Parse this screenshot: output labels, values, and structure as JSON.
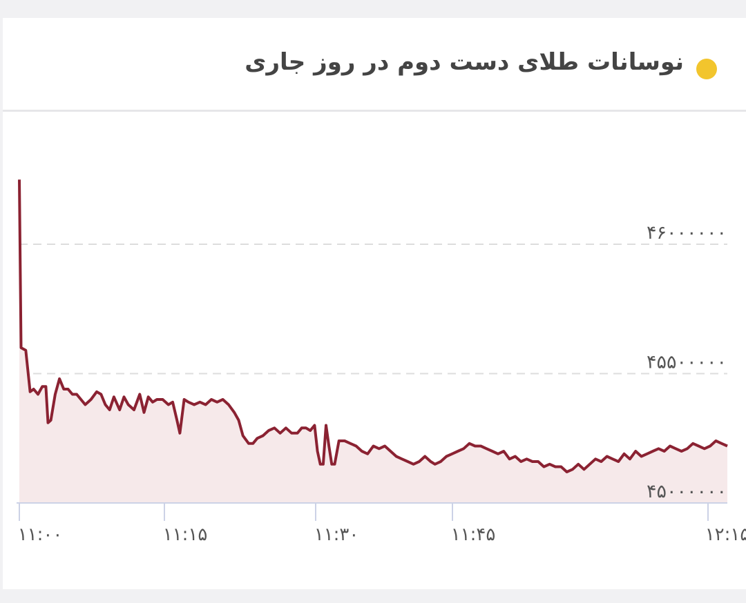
{
  "header": {
    "title": "نوسانات طلای دست دوم در روز جاری",
    "dot_color": "#f2c52d"
  },
  "chart_data": {
    "type": "area",
    "title": "نوسانات طلای دست دوم در روز جاری",
    "line_color": "#8b2232",
    "fill_color": "#f6e9ea",
    "grid": true,
    "y_ticks": [
      {
        "value": 45000000,
        "label": "۴۵۰۰۰۰۰۰"
      },
      {
        "value": 45500000,
        "label": "۴۵۵۰۰۰۰۰"
      },
      {
        "value": 46000000,
        "label": "۴۶۰۰۰۰۰۰"
      }
    ],
    "x_ticks": [
      {
        "value": 660,
        "label": "۱۱:۰۰"
      },
      {
        "value": 675,
        "label": "۱۱:۱۵"
      },
      {
        "value": 690,
        "label": "۱۱:۳۰"
      },
      {
        "value": 705,
        "label": "۱۱:۴۵"
      },
      {
        "value": 720,
        "label": "۱۲:۱۵"
      }
    ],
    "points": [
      [
        0,
        46250000
      ],
      [
        0.12,
        45600000
      ],
      [
        0.45,
        45590000
      ],
      [
        0.75,
        45430000
      ],
      [
        1.0,
        45440000
      ],
      [
        1.3,
        45420000
      ],
      [
        1.6,
        45450000
      ],
      [
        1.85,
        45450000
      ],
      [
        2.0,
        45310000
      ],
      [
        2.2,
        45320000
      ],
      [
        2.5,
        45420000
      ],
      [
        2.8,
        45480000
      ],
      [
        3.1,
        45440000
      ],
      [
        3.4,
        45440000
      ],
      [
        3.7,
        45420000
      ],
      [
        4.0,
        45420000
      ],
      [
        4.3,
        45400000
      ],
      [
        4.6,
        45380000
      ],
      [
        5.0,
        45400000
      ],
      [
        5.4,
        45430000
      ],
      [
        5.7,
        45420000
      ],
      [
        6.0,
        45380000
      ],
      [
        6.3,
        45360000
      ],
      [
        6.6,
        45410000
      ],
      [
        7.0,
        45360000
      ],
      [
        7.3,
        45410000
      ],
      [
        7.6,
        45380000
      ],
      [
        8.0,
        45360000
      ],
      [
        8.4,
        45420000
      ],
      [
        8.7,
        45350000
      ],
      [
        9.0,
        45410000
      ],
      [
        9.3,
        45390000
      ],
      [
        9.6,
        45400000
      ],
      [
        10.0,
        45400000
      ],
      [
        10.4,
        45380000
      ],
      [
        10.7,
        45390000
      ],
      [
        11.0,
        45320000
      ],
      [
        11.2,
        45270000
      ],
      [
        11.5,
        45400000
      ],
      [
        11.8,
        45390000
      ],
      [
        12.2,
        45380000
      ],
      [
        12.6,
        45390000
      ],
      [
        13.0,
        45380000
      ],
      [
        13.4,
        45400000
      ],
      [
        13.8,
        45390000
      ],
      [
        14.2,
        45400000
      ],
      [
        14.6,
        45380000
      ],
      [
        15.0,
        45350000
      ],
      [
        15.3,
        45320000
      ],
      [
        15.6,
        45260000
      ],
      [
        16.0,
        45230000
      ],
      [
        16.3,
        45230000
      ],
      [
        16.6,
        45250000
      ],
      [
        17.0,
        45260000
      ],
      [
        17.4,
        45280000
      ],
      [
        17.8,
        45290000
      ],
      [
        18.2,
        45270000
      ],
      [
        18.6,
        45290000
      ],
      [
        19.0,
        45270000
      ],
      [
        19.4,
        45270000
      ],
      [
        19.7,
        45290000
      ],
      [
        20.0,
        45290000
      ],
      [
        20.3,
        45280000
      ],
      [
        20.6,
        45300000
      ],
      [
        20.8,
        45200000
      ],
      [
        21.0,
        45150000
      ],
      [
        21.2,
        45150000
      ],
      [
        21.4,
        45300000
      ],
      [
        21.6,
        45220000
      ],
      [
        21.8,
        45150000
      ],
      [
        22.0,
        45150000
      ],
      [
        22.3,
        45240000
      ],
      [
        22.7,
        45240000
      ],
      [
        23.1,
        45230000
      ],
      [
        23.5,
        45220000
      ],
      [
        23.9,
        45200000
      ],
      [
        24.3,
        45190000
      ],
      [
        24.7,
        45220000
      ],
      [
        25.1,
        45210000
      ],
      [
        25.5,
        45220000
      ],
      [
        25.9,
        45200000
      ],
      [
        26.3,
        45180000
      ],
      [
        26.7,
        45170000
      ],
      [
        27.1,
        45160000
      ],
      [
        27.5,
        45150000
      ],
      [
        27.9,
        45160000
      ],
      [
        28.3,
        45180000
      ],
      [
        28.7,
        45160000
      ],
      [
        29.0,
        45150000
      ],
      [
        29.4,
        45160000
      ],
      [
        29.8,
        45180000
      ],
      [
        30.2,
        45190000
      ],
      [
        30.6,
        45200000
      ],
      [
        31.0,
        45210000
      ],
      [
        31.4,
        45230000
      ],
      [
        31.8,
        45220000
      ],
      [
        32.2,
        45220000
      ],
      [
        32.6,
        45210000
      ],
      [
        33.0,
        45200000
      ],
      [
        33.4,
        45190000
      ],
      [
        33.8,
        45200000
      ],
      [
        34.2,
        45170000
      ],
      [
        34.6,
        45180000
      ],
      [
        35.0,
        45160000
      ],
      [
        35.4,
        45170000
      ],
      [
        35.8,
        45160000
      ],
      [
        36.2,
        45160000
      ],
      [
        36.6,
        45140000
      ],
      [
        37.0,
        45150000
      ],
      [
        37.4,
        45140000
      ],
      [
        37.8,
        45140000
      ],
      [
        38.2,
        45120000
      ],
      [
        38.6,
        45130000
      ],
      [
        39.0,
        45150000
      ],
      [
        39.4,
        45130000
      ],
      [
        39.8,
        45150000
      ],
      [
        40.2,
        45170000
      ],
      [
        40.6,
        45160000
      ],
      [
        41.0,
        45180000
      ],
      [
        41.4,
        45170000
      ],
      [
        41.8,
        45160000
      ],
      [
        42.2,
        45190000
      ],
      [
        42.6,
        45170000
      ],
      [
        43.0,
        45200000
      ],
      [
        43.4,
        45180000
      ],
      [
        43.8,
        45190000
      ],
      [
        44.2,
        45200000
      ],
      [
        44.6,
        45210000
      ],
      [
        45.0,
        45200000
      ],
      [
        45.4,
        45220000
      ],
      [
        45.8,
        45210000
      ],
      [
        46.2,
        45200000
      ],
      [
        46.6,
        45210000
      ],
      [
        47.0,
        45230000
      ],
      [
        47.4,
        45220000
      ],
      [
        47.8,
        45210000
      ],
      [
        48.2,
        45220000
      ],
      [
        48.6,
        45240000
      ],
      [
        49.0,
        45230000
      ],
      [
        49.4,
        45220000
      ]
    ]
  }
}
